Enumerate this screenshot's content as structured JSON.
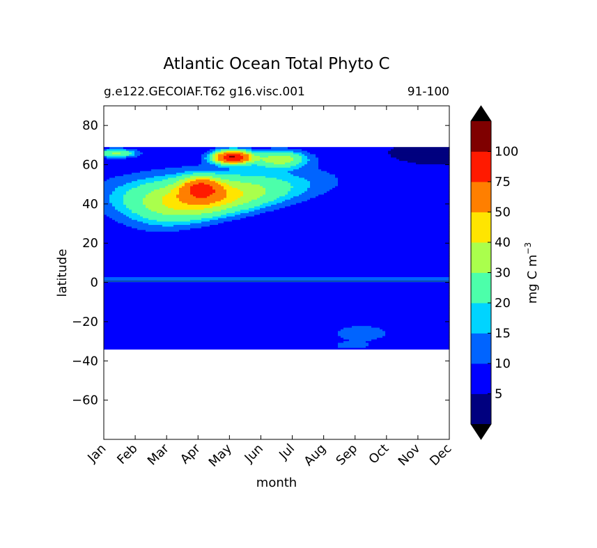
{
  "chart_data": {
    "type": "heatmap",
    "style": "filled-contour",
    "title": "Atlantic Ocean Total Phyto C",
    "subtitle_left": "g.e122.GECOIAF.T62 g16.visc.001",
    "subtitle_right": "91-100",
    "xlabel": "month",
    "ylabel": "latitude",
    "x_ticks": [
      "Jan",
      "Feb",
      "Mar",
      "Apr",
      "May",
      "Jun",
      "Jul",
      "Aug",
      "Sep",
      "Oct",
      "Nov",
      "Dec"
    ],
    "xlim": [
      0,
      11
    ],
    "ylim": [
      -80,
      90
    ],
    "y_ticks": [
      80,
      60,
      40,
      20,
      0,
      -20,
      -40,
      -60
    ],
    "y_tick_labels": [
      "80",
      "60",
      "40",
      "20",
      "0",
      "−20",
      "−40",
      "−60"
    ],
    "data_lat_range": [
      -34,
      69
    ],
    "levels": [
      0,
      5,
      10,
      15,
      20,
      30,
      40,
      50,
      75,
      100,
      125
    ],
    "colorbar": {
      "label": "mg C m",
      "label_superscript": "−3",
      "tick_labels": [
        "5",
        "10",
        "15",
        "20",
        "30",
        "40",
        "50",
        "75",
        "100"
      ],
      "extend": "both",
      "colors": [
        "#00007f",
        "#0000ff",
        "#0064ff",
        "#00d4ff",
        "#4cffaa",
        "#aaff4c",
        "#ffe500",
        "#ff7f00",
        "#ff1a00",
        "#7f0000"
      ],
      "extend_low_color": "#000000",
      "extend_high_color": "#000000"
    },
    "grid": false,
    "legend": "colorbar-right"
  }
}
